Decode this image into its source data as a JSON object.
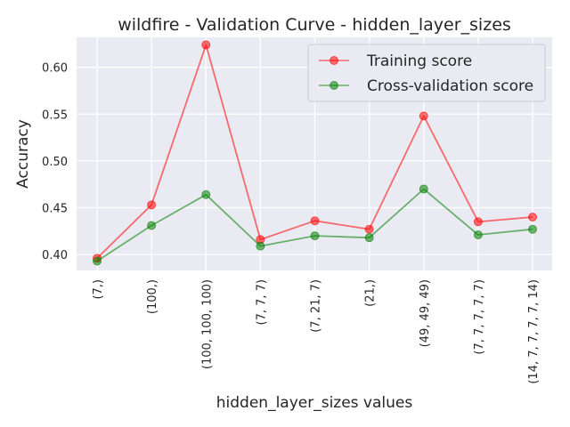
{
  "chart_data": {
    "type": "line",
    "title": "wildfire - Validation Curve - hidden_layer_sizes",
    "xlabel": "hidden_layer_sizes values",
    "ylabel": "Accuracy",
    "categories": [
      "(7,)",
      "(100,)",
      "(100, 100, 100)",
      "(7, 7, 7)",
      "(7, 21, 7)",
      "(21,)",
      "(49, 49, 49)",
      "(7, 7, 7, 7, 7)",
      "(14, 7, 7, 7, 7, 14)"
    ],
    "ylim": [
      0.383,
      0.632
    ],
    "yticks": [
      0.4,
      0.45,
      0.5,
      0.55,
      0.6
    ],
    "ytick_labels": [
      "0.40",
      "0.45",
      "0.50",
      "0.55",
      "0.60"
    ],
    "grid": true,
    "legend_position": "top-right",
    "series": [
      {
        "name": "Training score",
        "color": "#ff0000",
        "values": [
          0.396,
          0.453,
          0.624,
          0.416,
          0.436,
          0.427,
          0.548,
          0.435,
          0.44
        ]
      },
      {
        "name": "Cross-validation score",
        "color": "#008000",
        "values": [
          0.393,
          0.431,
          0.464,
          0.409,
          0.42,
          0.418,
          0.47,
          0.421,
          0.427
        ]
      }
    ]
  }
}
